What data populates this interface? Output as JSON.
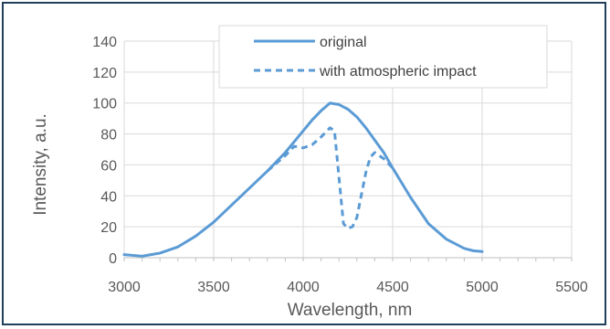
{
  "chart_data": {
    "type": "line",
    "xlabel": "Wavelength, nm",
    "ylabel": "Intensity, a.u.",
    "xlim": [
      3000,
      5500
    ],
    "ylim": [
      0,
      140
    ],
    "x_ticks": [
      "3000",
      "3500",
      "4000",
      "4500",
      "5000",
      "5500"
    ],
    "y_ticks": [
      "0",
      "20",
      "40",
      "60",
      "80",
      "100",
      "120",
      "140"
    ],
    "grid": true,
    "legend_position": "top-right",
    "line_color": "#5b9bd5",
    "series": [
      {
        "name": "original",
        "style": "solid",
        "x": [
          3000,
          3100,
          3150,
          3200,
          3250,
          3300,
          3400,
          3500,
          3600,
          3700,
          3800,
          3850,
          3900,
          3950,
          4000,
          4050,
          4100,
          4150,
          4200,
          4250,
          4300,
          4350,
          4400,
          4450,
          4500,
          4600,
          4700,
          4800,
          4900,
          4950,
          5000
        ],
        "y": [
          2,
          1,
          2,
          3,
          5,
          7,
          14,
          23,
          34,
          45,
          56,
          62,
          68,
          75,
          82,
          89,
          95,
          100,
          99,
          96,
          91,
          84,
          76,
          68,
          58,
          39,
          22,
          12,
          6,
          4.5,
          4
        ]
      },
      {
        "name": "with atmospheric impact",
        "style": "dashed",
        "x": [
          3800,
          3850,
          3900,
          3950,
          4000,
          4050,
          4100,
          4150,
          4175,
          4200,
          4225,
          4250,
          4275,
          4300,
          4350,
          4375,
          4400,
          4450,
          4500
        ],
        "y": [
          56,
          61,
          66,
          72,
          71,
          73,
          78,
          84,
          82,
          52,
          22,
          19,
          20,
          26,
          55,
          65,
          68,
          64,
          58
        ]
      }
    ]
  }
}
